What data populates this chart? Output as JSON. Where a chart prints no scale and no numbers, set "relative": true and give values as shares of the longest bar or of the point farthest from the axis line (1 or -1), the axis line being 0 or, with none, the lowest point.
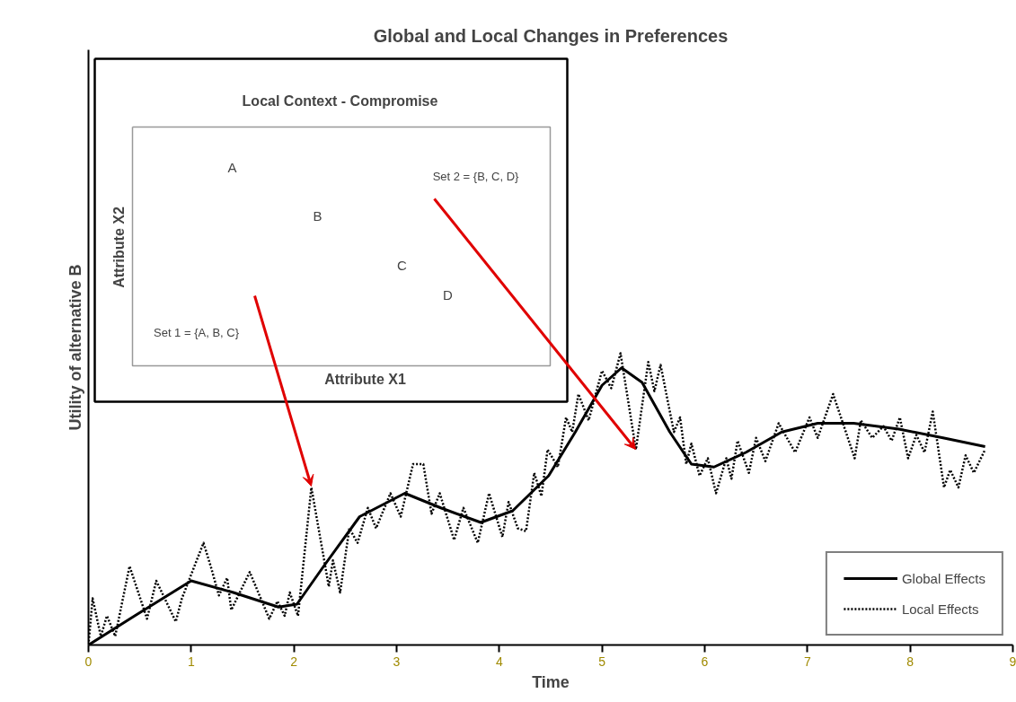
{
  "chart_data": {
    "type": "line",
    "title": "Global and Local Changes in Preferences",
    "xlabel": "Time",
    "ylabel": "Utility of alternative B",
    "relative": true,
    "xlim": [
      0,
      9
    ],
    "xticks": [
      0,
      1,
      2,
      3,
      4,
      5,
      6,
      7,
      8,
      9
    ],
    "legend": "bottom right",
    "grid": false,
    "marker": "none",
    "series": [
      {
        "name": "Global Effects",
        "color": "#000000",
        "line_style": "solid",
        "x": [
          0,
          0.45,
          1.0,
          1.41,
          1.85,
          2.03,
          2.29,
          2.64,
          3.08,
          3.43,
          3.82,
          4.13,
          4.48,
          4.74,
          5.0,
          5.19,
          5.39,
          5.66,
          5.87,
          6.09,
          6.4,
          6.75,
          7.1,
          7.45,
          7.89,
          8.32,
          8.73
        ],
        "values": [
          0,
          0.1,
          0.22,
          0.18,
          0.13,
          0.14,
          0.27,
          0.44,
          0.52,
          0.47,
          0.42,
          0.46,
          0.58,
          0.73,
          0.89,
          0.95,
          0.9,
          0.73,
          0.62,
          0.61,
          0.66,
          0.73,
          0.76,
          0.76,
          0.74,
          0.71,
          0.68
        ]
      },
      {
        "name": "Local Effects",
        "color": "#000000",
        "line_style": "dotted",
        "x": [
          0,
          0.04,
          0.12,
          0.18,
          0.26,
          0.4,
          0.57,
          0.66,
          0.85,
          0.91,
          1.12,
          1.19,
          1.27,
          1.35,
          1.39,
          1.57,
          1.76,
          1.84,
          1.91,
          1.96,
          2.04,
          2.17,
          2.34,
          2.38,
          2.45,
          2.54,
          2.62,
          2.72,
          2.8,
          2.94,
          3.04,
          3.16,
          3.26,
          3.34,
          3.42,
          3.56,
          3.65,
          3.79,
          3.9,
          4.03,
          4.09,
          4.18,
          4.26,
          4.34,
          4.41,
          4.47,
          4.57,
          4.65,
          4.71,
          4.77,
          4.87,
          5.0,
          5.09,
          5.18,
          5.33,
          5.45,
          5.51,
          5.57,
          5.7,
          5.76,
          5.82,
          5.87,
          5.95,
          6.03,
          6.11,
          6.21,
          6.26,
          6.32,
          6.43,
          6.5,
          6.59,
          6.72,
          6.88,
          7.02,
          7.1,
          7.25,
          7.46,
          7.52,
          7.63,
          7.74,
          7.82,
          7.9,
          7.98,
          8.06,
          8.14,
          8.22,
          8.33,
          8.39,
          8.47,
          8.54,
          8.62,
          8.73
        ],
        "values": [
          0,
          0.16,
          0.03,
          0.1,
          0.03,
          0.27,
          0.09,
          0.22,
          0.08,
          0.16,
          0.35,
          0.27,
          0.17,
          0.23,
          0.12,
          0.25,
          0.09,
          0.15,
          0.1,
          0.18,
          0.1,
          0.54,
          0.2,
          0.29,
          0.18,
          0.4,
          0.35,
          0.47,
          0.4,
          0.52,
          0.44,
          0.62,
          0.62,
          0.45,
          0.52,
          0.36,
          0.47,
          0.35,
          0.52,
          0.37,
          0.49,
          0.4,
          0.39,
          0.59,
          0.51,
          0.67,
          0.61,
          0.78,
          0.73,
          0.86,
          0.77,
          0.94,
          0.88,
          1.0,
          0.67,
          0.97,
          0.87,
          0.96,
          0.73,
          0.78,
          0.62,
          0.69,
          0.58,
          0.64,
          0.52,
          0.64,
          0.57,
          0.7,
          0.59,
          0.71,
          0.63,
          0.76,
          0.66,
          0.78,
          0.71,
          0.86,
          0.64,
          0.77,
          0.71,
          0.75,
          0.7,
          0.78,
          0.64,
          0.72,
          0.66,
          0.8,
          0.54,
          0.6,
          0.54,
          0.65,
          0.59,
          0.67
        ]
      }
    ],
    "annotations": [
      "Local Context - Compromise",
      "Attribute X1",
      "Attribute X2",
      "A",
      "B",
      "C",
      "D",
      "Set 1 = {A, B, C}",
      "Set 2 = {B, C, D}"
    ]
  }
}
